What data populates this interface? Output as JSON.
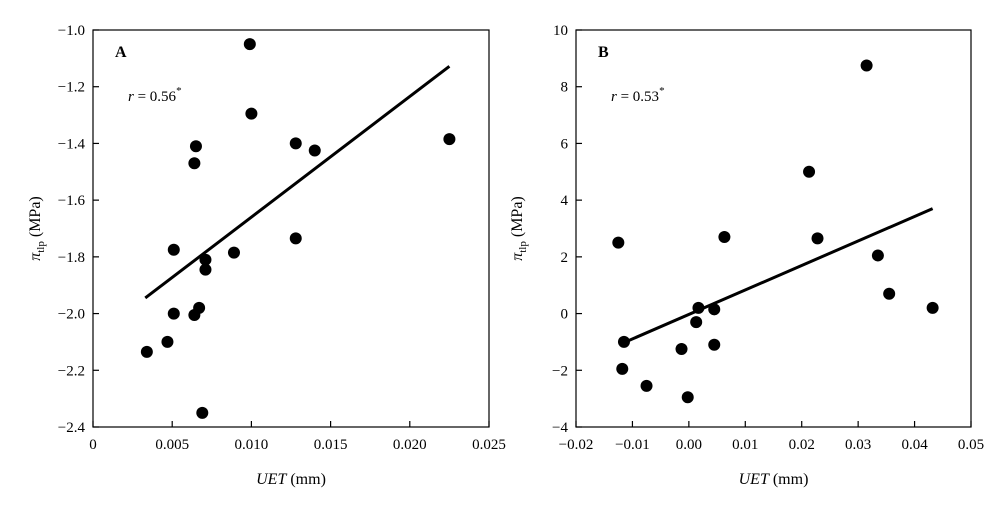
{
  "chart_data": [
    {
      "type": "scatter",
      "panel_label": "A",
      "annotation": {
        "var": "r",
        "eq": " = 0.56",
        "sup": "*"
      },
      "xlabel": {
        "italic": "UET",
        "rest": " (mm)"
      },
      "ylabel": {
        "symbol": "π",
        "sub": "tlp",
        "rest": " (MPa)"
      },
      "xlim": [
        0,
        0.025
      ],
      "ylim": [
        -2.4,
        -1.0
      ],
      "xticks": [
        0,
        0.005,
        0.01,
        0.015,
        0.02,
        0.025
      ],
      "xtick_labels": [
        "0",
        "0.005",
        "0.010",
        "0.015",
        "0.020",
        "0.025"
      ],
      "yticks": [
        -2.4,
        -2.2,
        -2.0,
        -1.8,
        -1.6,
        -1.4,
        -1.2,
        -1.0
      ],
      "ytick_labels": [
        "−2.4",
        "−2.2",
        "−2.0",
        "−1.8",
        "−1.6",
        "−1.4",
        "−1.2",
        "−1.0"
      ],
      "points": [
        [
          0.0034,
          -2.135
        ],
        [
          0.0047,
          -2.1
        ],
        [
          0.0051,
          -2.0
        ],
        [
          0.0051,
          -1.775
        ],
        [
          0.0064,
          -1.47
        ],
        [
          0.0065,
          -1.41
        ],
        [
          0.0064,
          -2.005
        ],
        [
          0.0067,
          -1.98
        ],
        [
          0.0069,
          -2.35
        ],
        [
          0.0071,
          -1.81
        ],
        [
          0.0071,
          -1.845
        ],
        [
          0.0089,
          -1.785
        ],
        [
          0.0099,
          -1.05
        ],
        [
          0.01,
          -1.295
        ],
        [
          0.0128,
          -1.4
        ],
        [
          0.0128,
          -1.735
        ],
        [
          0.014,
          -1.425
        ],
        [
          0.0225,
          -1.385
        ]
      ],
      "fit_line": [
        [
          0.0033,
          -1.945
        ],
        [
          0.0225,
          -1.128
        ]
      ],
      "grid": false,
      "legend": "none"
    },
    {
      "type": "scatter",
      "panel_label": "B",
      "annotation": {
        "var": "r",
        "eq": " = 0.53",
        "sup": "*"
      },
      "xlabel": {
        "italic": "UET",
        "rest": " (mm)"
      },
      "ylabel": {
        "symbol": "π",
        "sub": "tlp",
        "rest": " (MPa)"
      },
      "xlim": [
        -0.02,
        0.05
      ],
      "ylim": [
        -4,
        10
      ],
      "xticks": [
        -0.02,
        -0.01,
        0.0,
        0.01,
        0.02,
        0.03,
        0.04,
        0.05
      ],
      "xtick_labels": [
        "−0.02",
        "−0.01",
        "0.00",
        "0.01",
        "0.02",
        "0.03",
        "0.04",
        "0.05"
      ],
      "yticks": [
        -4,
        -2,
        0,
        2,
        4,
        6,
        8,
        10
      ],
      "ytick_labels": [
        "−4",
        "−2",
        "0",
        "2",
        "4",
        "6",
        "8",
        "10"
      ],
      "points": [
        [
          -0.0125,
          2.5
        ],
        [
          -0.0115,
          -1.0
        ],
        [
          -0.0118,
          -1.95
        ],
        [
          -0.0075,
          -2.55
        ],
        [
          -0.0013,
          -1.25
        ],
        [
          -0.0002,
          -2.95
        ],
        [
          0.0013,
          -0.3
        ],
        [
          0.0017,
          0.2
        ],
        [
          0.0045,
          0.15
        ],
        [
          0.0045,
          -1.1
        ],
        [
          0.0063,
          2.7
        ],
        [
          0.0213,
          5.0
        ],
        [
          0.0228,
          2.65
        ],
        [
          0.0315,
          8.75
        ],
        [
          0.0335,
          2.05
        ],
        [
          0.0355,
          0.7
        ],
        [
          0.0432,
          0.2
        ]
      ],
      "fit_line": [
        [
          -0.0118,
          -1.05
        ],
        [
          0.0432,
          3.7
        ]
      ],
      "grid": false,
      "legend": "none"
    }
  ]
}
